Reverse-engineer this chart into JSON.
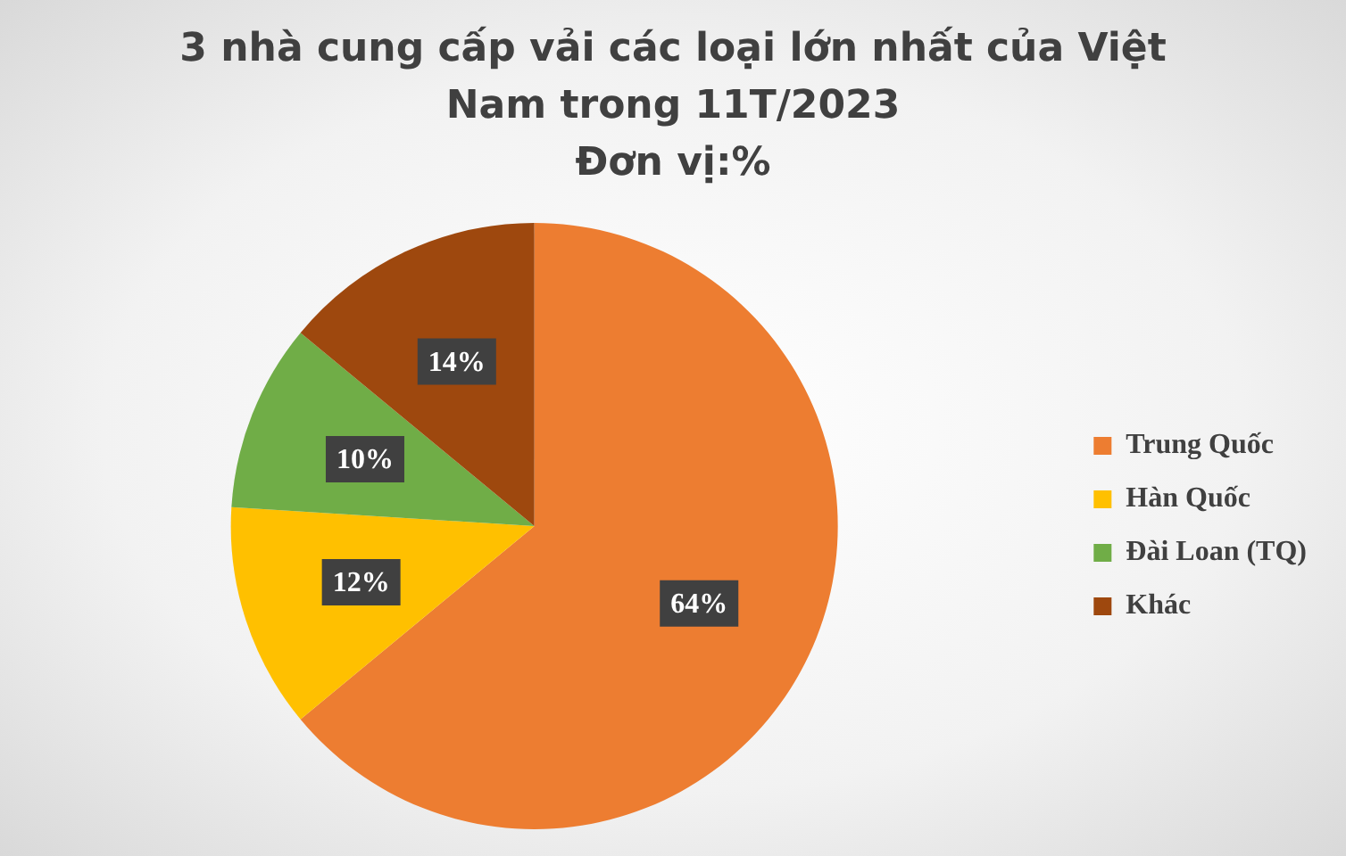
{
  "chart_data": {
    "type": "pie",
    "title": "3 nhà cung cấp vải các loại lớn nhất của Việt Nam trong 11T/2023",
    "subtitle": "Đơn vị:%",
    "categories": [
      "Trung Quốc",
      "Hàn Quốc",
      "Đài Loan (TQ)",
      "Khác"
    ],
    "values": [
      64,
      12,
      10,
      14
    ],
    "value_labels": [
      "64%",
      "12%",
      "10%",
      "14%"
    ],
    "colors": [
      "#ed7d31",
      "#ffc000",
      "#70ad47",
      "#9e480e"
    ],
    "legend": "right"
  }
}
